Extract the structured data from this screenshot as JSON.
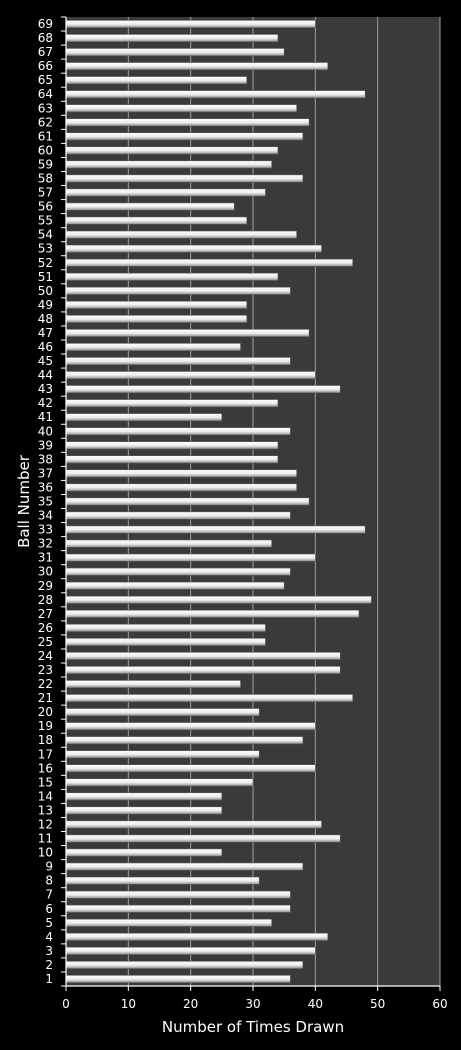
{
  "chart_data": {
    "type": "bar",
    "orientation": "horizontal",
    "title": "",
    "xlabel": "Number of Times Drawn",
    "ylabel": "Ball Number",
    "xlim": [
      0,
      60
    ],
    "x_ticks": [
      0,
      10,
      20,
      30,
      40,
      50,
      60
    ],
    "grid": "vertical",
    "categories": [
      "1",
      "2",
      "3",
      "4",
      "5",
      "6",
      "7",
      "8",
      "9",
      "10",
      "11",
      "12",
      "13",
      "14",
      "15",
      "16",
      "17",
      "18",
      "19",
      "20",
      "21",
      "22",
      "23",
      "24",
      "25",
      "26",
      "27",
      "28",
      "29",
      "30",
      "31",
      "32",
      "33",
      "34",
      "35",
      "36",
      "37",
      "38",
      "39",
      "40",
      "41",
      "42",
      "43",
      "44",
      "45",
      "46",
      "47",
      "48",
      "49",
      "50",
      "51",
      "52",
      "53",
      "54",
      "55",
      "56",
      "57",
      "58",
      "59",
      "60",
      "61",
      "62",
      "63",
      "64",
      "65",
      "66",
      "67",
      "68",
      "69"
    ],
    "values": [
      36,
      38,
      40,
      42,
      33,
      36,
      36,
      31,
      38,
      25,
      44,
      41,
      25,
      25,
      30,
      40,
      31,
      38,
      40,
      31,
      46,
      28,
      44,
      44,
      32,
      32,
      47,
      49,
      35,
      36,
      40,
      33,
      48,
      36,
      39,
      37,
      37,
      34,
      34,
      36,
      25,
      34,
      44,
      40,
      36,
      28,
      39,
      29,
      29,
      36,
      34,
      46,
      41,
      37,
      29,
      27,
      32,
      38,
      33,
      34,
      38,
      39,
      37,
      48,
      29,
      42,
      35,
      34,
      40
    ],
    "colors": {
      "background": "#000000",
      "plot_area": "#3a3a3a",
      "gridline": "#a0a0a0",
      "bar_fill": "#ffffff",
      "bar_shade": "#8c8c8c",
      "text": "#ffffff"
    }
  }
}
